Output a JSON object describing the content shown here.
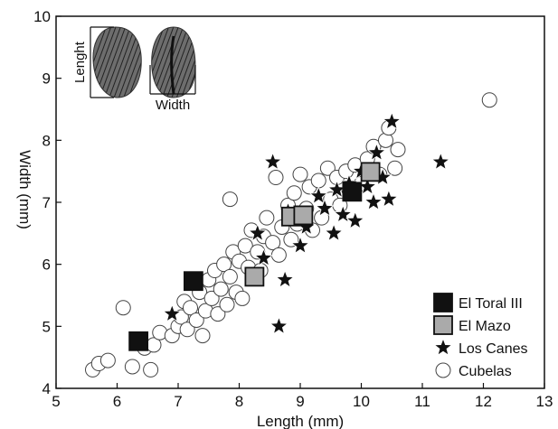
{
  "chart_data": {
    "type": "scatter",
    "xlabel": "Length (mm)",
    "ylabel": "Width (mm)",
    "xlim": [
      5,
      13
    ],
    "ylim": [
      4,
      10
    ],
    "x_ticks": [
      "5",
      "6",
      "7",
      "8",
      "9",
      "10",
      "11",
      "12",
      "13"
    ],
    "y_ticks": [
      "4",
      "5",
      "6",
      "7",
      "8",
      "9",
      "10"
    ],
    "legend_position": "bottom-right",
    "inset": {
      "length_label": "Lenght",
      "width_label": "Width"
    },
    "series": [
      {
        "name": "El Toral III",
        "marker": "square",
        "color": "#111111",
        "points": [
          [
            6.35,
            4.76
          ],
          [
            7.25,
            5.73
          ],
          [
            9.85,
            7.17
          ]
        ]
      },
      {
        "name": "El Mazo",
        "marker": "square",
        "color": "#aaaaaa",
        "points": [
          [
            8.25,
            5.8
          ],
          [
            8.85,
            6.77
          ],
          [
            9.05,
            6.79
          ],
          [
            10.15,
            7.49
          ]
        ]
      },
      {
        "name": "Los Canes",
        "marker": "star",
        "color": "#111111",
        "points": [
          [
            6.9,
            5.2
          ],
          [
            8.3,
            6.5
          ],
          [
            8.4,
            6.1
          ],
          [
            8.55,
            7.65
          ],
          [
            8.65,
            5.0
          ],
          [
            8.75,
            5.75
          ],
          [
            8.8,
            6.85
          ],
          [
            9.0,
            6.3
          ],
          [
            9.1,
            6.6
          ],
          [
            9.3,
            7.1
          ],
          [
            9.4,
            6.9
          ],
          [
            9.55,
            6.5
          ],
          [
            9.6,
            7.2
          ],
          [
            9.7,
            6.8
          ],
          [
            9.8,
            7.3
          ],
          [
            9.9,
            6.7
          ],
          [
            10.0,
            7.5
          ],
          [
            10.1,
            7.25
          ],
          [
            10.2,
            7.0
          ],
          [
            10.25,
            7.8
          ],
          [
            10.35,
            7.4
          ],
          [
            10.45,
            7.05
          ],
          [
            10.5,
            8.3
          ],
          [
            11.3,
            7.65
          ]
        ]
      },
      {
        "name": "Cubelas",
        "marker": "circle",
        "color": "#ffffff",
        "points": [
          [
            5.6,
            4.3
          ],
          [
            5.7,
            4.4
          ],
          [
            5.85,
            4.45
          ],
          [
            6.1,
            5.3
          ],
          [
            6.25,
            4.35
          ],
          [
            6.45,
            4.65
          ],
          [
            6.55,
            4.3
          ],
          [
            6.6,
            4.7
          ],
          [
            6.7,
            4.9
          ],
          [
            6.9,
            4.85
          ],
          [
            7.0,
            5.0
          ],
          [
            7.05,
            5.15
          ],
          [
            7.1,
            5.4
          ],
          [
            7.15,
            4.95
          ],
          [
            7.2,
            5.3
          ],
          [
            7.3,
            5.1
          ],
          [
            7.35,
            5.55
          ],
          [
            7.4,
            4.85
          ],
          [
            7.45,
            5.25
          ],
          [
            7.5,
            5.75
          ],
          [
            7.55,
            5.45
          ],
          [
            7.6,
            5.9
          ],
          [
            7.65,
            5.2
          ],
          [
            7.7,
            5.6
          ],
          [
            7.75,
            6.0
          ],
          [
            7.8,
            5.35
          ],
          [
            7.85,
            5.8
          ],
          [
            7.9,
            6.2
          ],
          [
            7.95,
            5.55
          ],
          [
            8.0,
            6.05
          ],
          [
            8.05,
            5.45
          ],
          [
            8.1,
            6.3
          ],
          [
            8.15,
            5.95
          ],
          [
            8.2,
            6.55
          ],
          [
            8.3,
            6.2
          ],
          [
            8.35,
            5.9
          ],
          [
            8.4,
            6.45
          ],
          [
            8.45,
            6.75
          ],
          [
            8.55,
            6.35
          ],
          [
            8.6,
            7.4
          ],
          [
            8.65,
            6.15
          ],
          [
            8.7,
            6.6
          ],
          [
            8.8,
            6.95
          ],
          [
            8.85,
            6.4
          ],
          [
            8.9,
            7.15
          ],
          [
            8.95,
            6.65
          ],
          [
            9.0,
            7.45
          ],
          [
            9.1,
            6.9
          ],
          [
            9.15,
            7.25
          ],
          [
            9.2,
            6.55
          ],
          [
            9.3,
            7.35
          ],
          [
            9.35,
            6.75
          ],
          [
            9.45,
            7.55
          ],
          [
            9.5,
            7.05
          ],
          [
            9.6,
            7.4
          ],
          [
            9.65,
            6.95
          ],
          [
            9.75,
            7.5
          ],
          [
            9.8,
            7.2
          ],
          [
            9.9,
            7.6
          ],
          [
            10.0,
            7.3
          ],
          [
            10.1,
            7.7
          ],
          [
            10.2,
            7.9
          ],
          [
            10.3,
            7.45
          ],
          [
            10.4,
            8.0
          ],
          [
            10.45,
            8.2
          ],
          [
            10.55,
            7.55
          ],
          [
            10.6,
            7.85
          ],
          [
            7.85,
            7.05
          ],
          [
            12.1,
            8.65
          ]
        ]
      }
    ]
  }
}
